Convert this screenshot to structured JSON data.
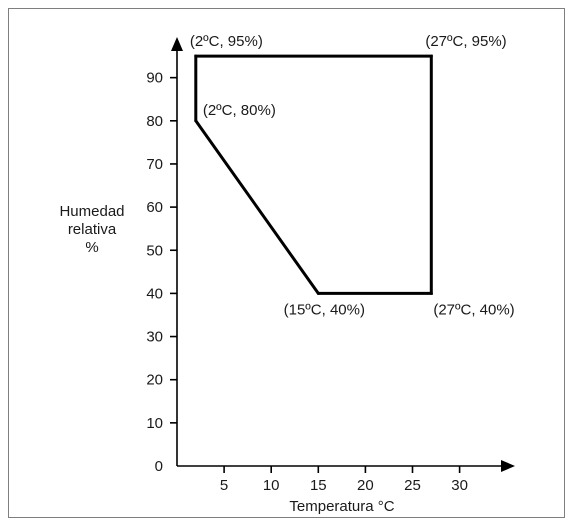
{
  "chart_data": {
    "type": "line",
    "title": "",
    "xlabel": "Temperatura °C",
    "ylabel": [
      "Humedad",
      "relativa",
      "%"
    ],
    "xlim": [
      0,
      34
    ],
    "ylim": [
      0,
      100
    ],
    "x_ticks": [
      {
        "value": 5,
        "label": "5"
      },
      {
        "value": 10,
        "label": "10"
      },
      {
        "value": 15,
        "label": "15"
      },
      {
        "value": 20,
        "label": "20"
      },
      {
        "value": 25,
        "label": "25"
      },
      {
        "value": 30,
        "label": "30"
      }
    ],
    "y_ticks": [
      {
        "value": 0,
        "label": "0"
      },
      {
        "value": 10,
        "label": "10"
      },
      {
        "value": 20,
        "label": "20"
      },
      {
        "value": 30,
        "label": "30"
      },
      {
        "value": 40,
        "label": "40"
      },
      {
        "value": 50,
        "label": "50"
      },
      {
        "value": 60,
        "label": "60"
      },
      {
        "value": 70,
        "label": "70"
      },
      {
        "value": 80,
        "label": "80"
      },
      {
        "value": 90,
        "label": "90"
      }
    ],
    "series": [
      {
        "closed": true,
        "points": [
          {
            "x": 2,
            "y": 95,
            "label": "(2ºC, 95%)",
            "anchor": "top-right"
          },
          {
            "x": 27,
            "y": 95,
            "label": "(27ºC, 95%)",
            "anchor": "top-right"
          },
          {
            "x": 27,
            "y": 40,
            "label": "(27ºC, 40%)",
            "anchor": "bottom-right"
          },
          {
            "x": 15,
            "y": 40,
            "label": "(15ºC, 40%)",
            "anchor": "bottom"
          },
          {
            "x": 2,
            "y": 80,
            "label": "(2ºC, 80%)",
            "anchor": "right"
          }
        ]
      }
    ],
    "grid": false,
    "colors": {
      "line": "#000000",
      "text": "#1a1a1a",
      "frame": "#7f7f7f"
    }
  }
}
